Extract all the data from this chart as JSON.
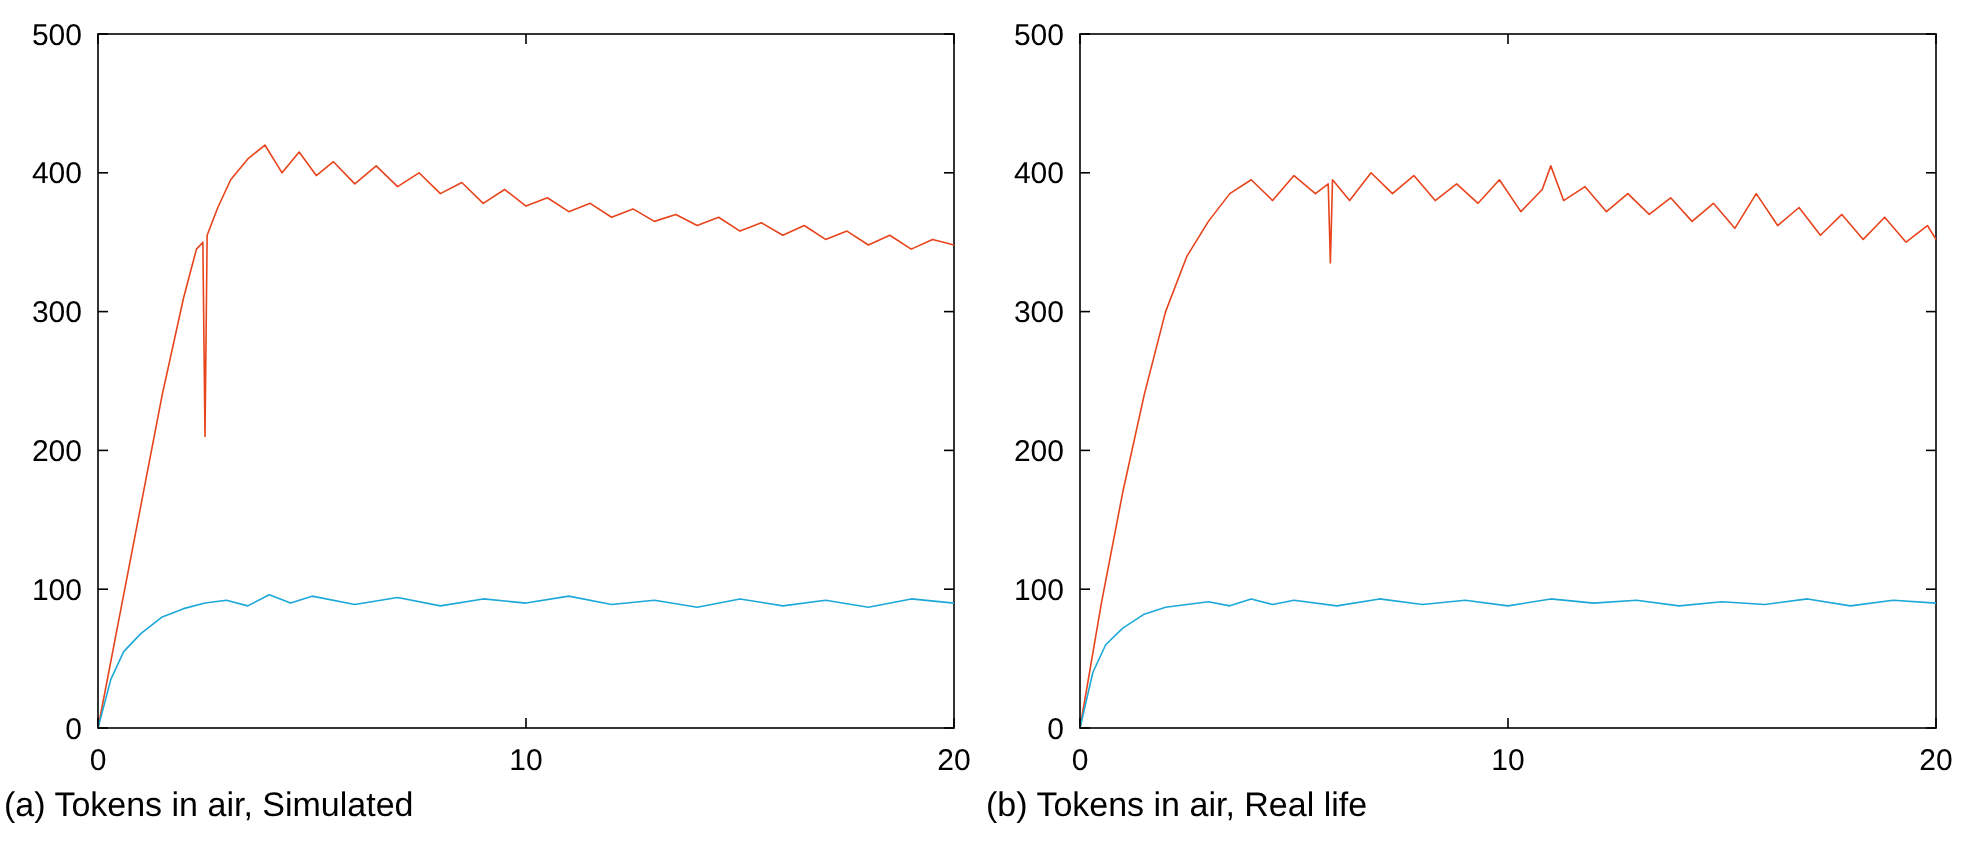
{
  "chart_data": [
    {
      "type": "line",
      "title": "(a) Tokens in air, Simulated",
      "xlim": [
        0,
        20
      ],
      "xticks": [
        0,
        10,
        20
      ],
      "ylim": [
        0,
        500
      ],
      "yticks": [
        0,
        100,
        200,
        300,
        400,
        500
      ],
      "grid": false,
      "marker": "none",
      "line_style": "solid",
      "series": [
        {
          "color": "#e8441c",
          "x": [
            0,
            0.5,
            1,
            1.5,
            2,
            2.3,
            2.45,
            2.5,
            2.55,
            2.8,
            3.1,
            3.5,
            3.9,
            4.3,
            4.7,
            5.1,
            5.5,
            6,
            6.5,
            7,
            7.5,
            8,
            8.5,
            9,
            9.5,
            10,
            10.5,
            11,
            11.5,
            12,
            12.5,
            13,
            13.5,
            14,
            14.5,
            15,
            15.5,
            16,
            16.5,
            17,
            17.5,
            18,
            18.5,
            19,
            19.5,
            20
          ],
          "values": [
            0,
            80,
            160,
            240,
            310,
            345,
            350,
            210,
            355,
            375,
            395,
            410,
            420,
            400,
            415,
            398,
            408,
            392,
            405,
            390,
            400,
            385,
            393,
            378,
            388,
            376,
            382,
            372,
            378,
            368,
            374,
            365,
            370,
            362,
            368,
            358,
            364,
            355,
            362,
            352,
            358,
            348,
            355,
            345,
            352,
            348
          ]
        },
        {
          "color": "#1ca8d8",
          "x": [
            0,
            0.3,
            0.6,
            1,
            1.5,
            2,
            2.5,
            3,
            3.5,
            4,
            4.5,
            5,
            6,
            7,
            8,
            9,
            10,
            11,
            12,
            13,
            14,
            15,
            16,
            17,
            18,
            19,
            20
          ],
          "values": [
            0,
            35,
            55,
            68,
            80,
            86,
            90,
            92,
            88,
            96,
            90,
            95,
            89,
            94,
            88,
            93,
            90,
            95,
            89,
            92,
            87,
            93,
            88,
            92,
            87,
            93,
            90
          ]
        }
      ]
    },
    {
      "type": "line",
      "title": "(b) Tokens in air, Real life",
      "xlim": [
        0,
        20
      ],
      "xticks": [
        0,
        10,
        20
      ],
      "ylim": [
        0,
        500
      ],
      "yticks": [
        0,
        100,
        200,
        300,
        400,
        500
      ],
      "grid": false,
      "marker": "none",
      "line_style": "solid",
      "series": [
        {
          "color": "#e8441c",
          "x": [
            0,
            0.5,
            1,
            1.5,
            2,
            2.5,
            3,
            3.5,
            4,
            4.5,
            5,
            5.5,
            5.8,
            5.85,
            5.9,
            6.3,
            6.8,
            7.3,
            7.8,
            8.3,
            8.8,
            9.3,
            9.8,
            10.3,
            10.8,
            11,
            11.3,
            11.8,
            12.3,
            12.8,
            13.3,
            13.8,
            14.3,
            14.8,
            15.3,
            15.8,
            16.3,
            16.8,
            17.3,
            17.8,
            18.3,
            18.8,
            19.3,
            19.8,
            20
          ],
          "values": [
            0,
            90,
            170,
            240,
            300,
            340,
            365,
            385,
            395,
            380,
            398,
            385,
            392,
            335,
            395,
            380,
            400,
            385,
            398,
            380,
            392,
            378,
            395,
            372,
            388,
            405,
            380,
            390,
            372,
            385,
            370,
            382,
            365,
            378,
            360,
            385,
            362,
            375,
            355,
            370,
            352,
            368,
            350,
            362,
            352
          ]
        },
        {
          "color": "#1ca8d8",
          "x": [
            0,
            0.3,
            0.6,
            1,
            1.5,
            2,
            2.5,
            3,
            3.5,
            4,
            4.5,
            5,
            6,
            7,
            8,
            9,
            10,
            11,
            12,
            13,
            14,
            15,
            16,
            17,
            18,
            19,
            20
          ],
          "values": [
            0,
            40,
            60,
            72,
            82,
            87,
            89,
            91,
            88,
            93,
            89,
            92,
            88,
            93,
            89,
            92,
            88,
            93,
            90,
            92,
            88,
            91,
            89,
            93,
            88,
            92,
            90
          ]
        }
      ]
    }
  ]
}
